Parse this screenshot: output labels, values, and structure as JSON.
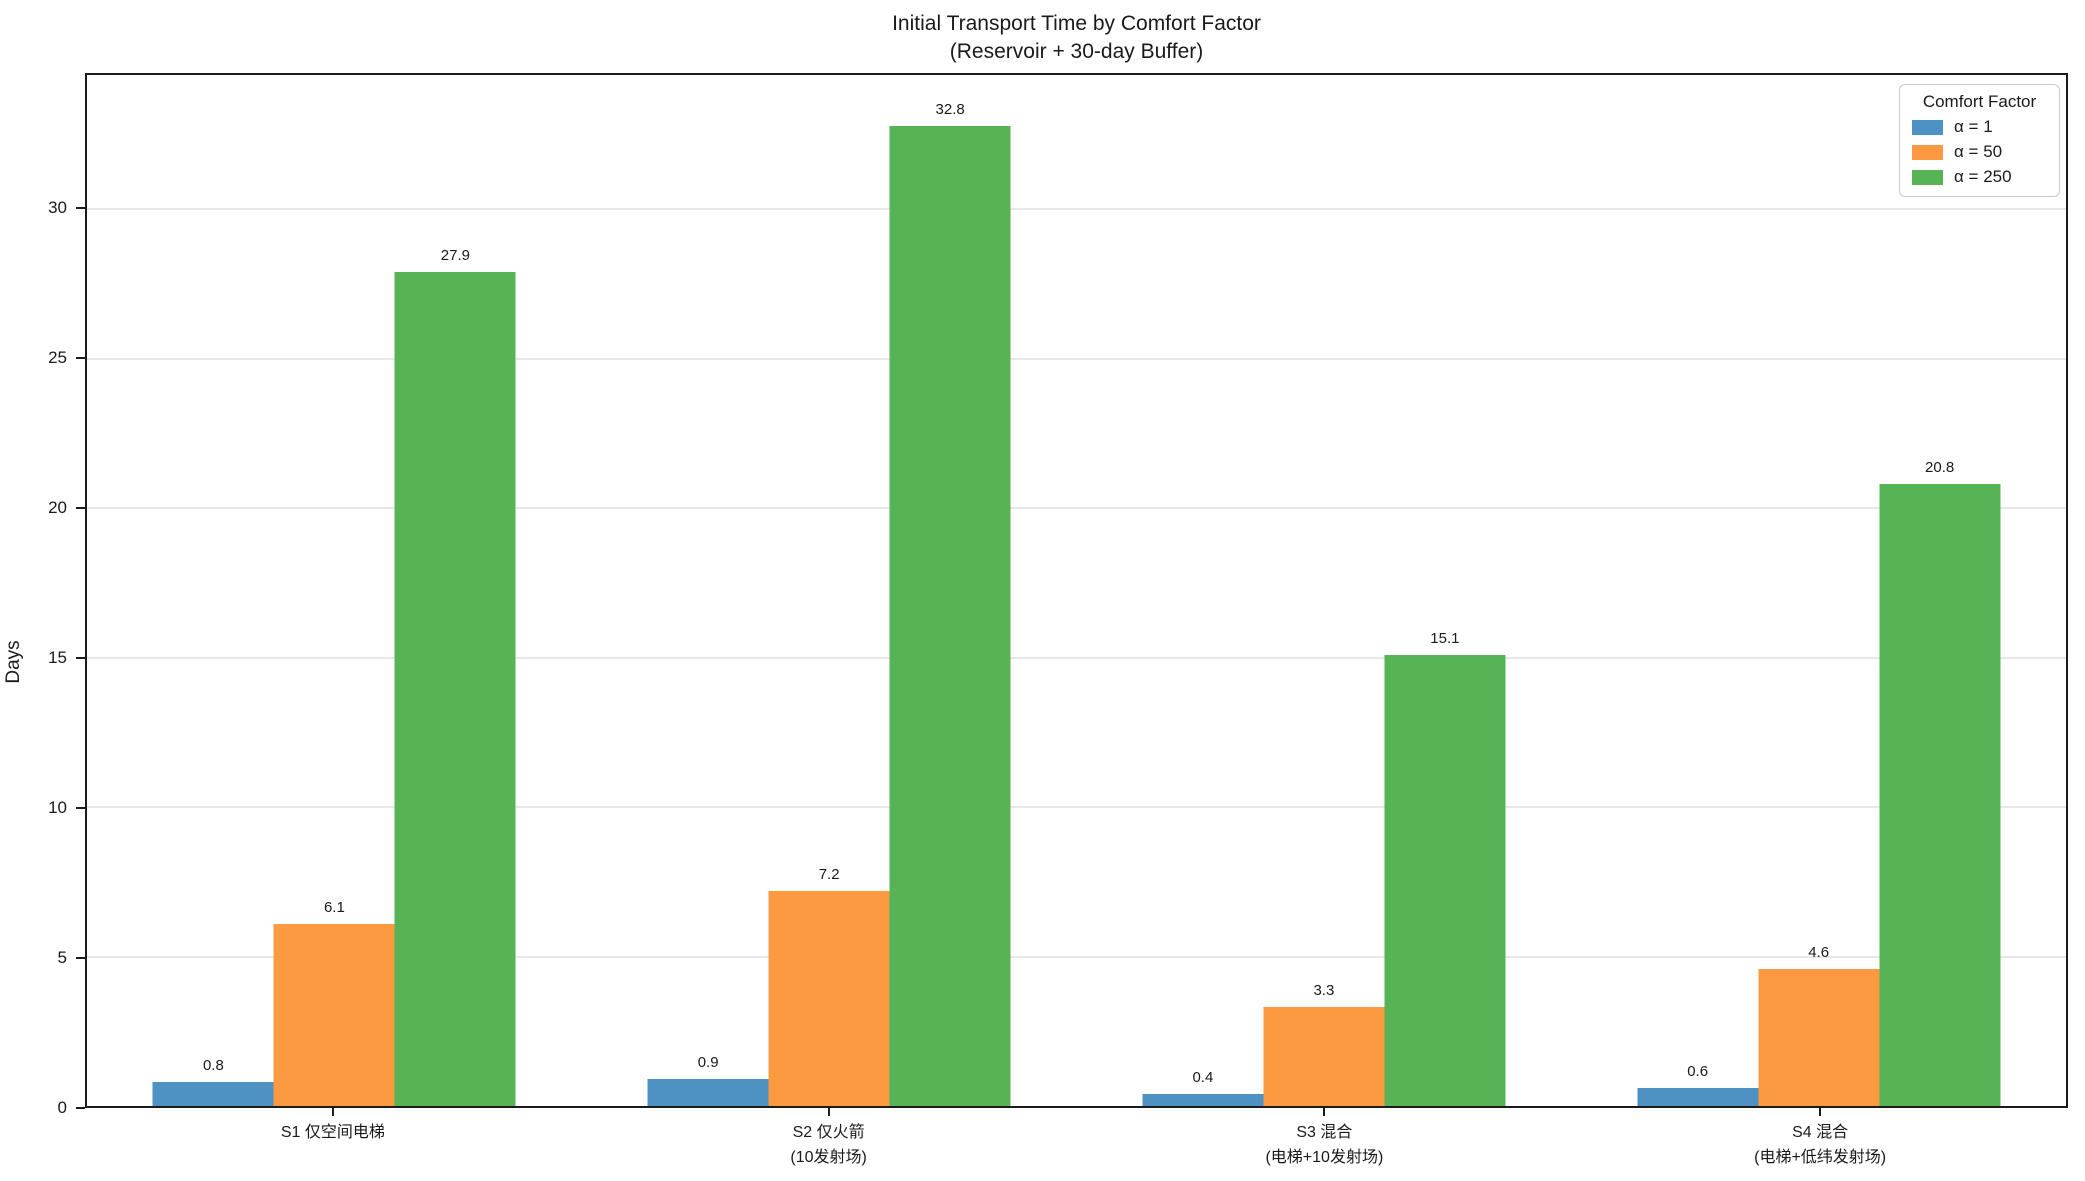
{
  "figure": {
    "title_line1": "Initial Transport Time by Comfort Factor",
    "title_line2": "(Reservoir + 30-day Buffer)"
  },
  "chart_data": {
    "type": "bar",
    "title": "Initial Transport Time by Comfort Factor\n(Reservoir + 30-day Buffer)",
    "xlabel": "",
    "ylabel": "Days",
    "ylim": [
      0,
      34.5
    ],
    "yticks": [
      0,
      5,
      10,
      15,
      20,
      25,
      30
    ],
    "grid": true,
    "bar_value_labels": true,
    "categories": [
      "S1 仅空间电梯",
      "S2 仅火箭\n(10发射场)",
      "S3 混合\n(电梯+10发射场)",
      "S4 混合\n(电梯+低纬发射场)"
    ],
    "series": [
      {
        "name": "α = 1",
        "color": "#4E92C3",
        "values": [
          0.8,
          0.9,
          0.4,
          0.6
        ]
      },
      {
        "name": "α = 50",
        "color": "#FB9A40",
        "values": [
          6.1,
          7.2,
          3.3,
          4.6
        ]
      },
      {
        "name": "α = 250",
        "color": "#56B356",
        "values": [
          27.9,
          32.8,
          15.1,
          20.8
        ]
      }
    ],
    "legend": {
      "title": "Comfort Factor",
      "position": "upper-right"
    }
  },
  "colors": {
    "background": "#ffffff",
    "spine": "#1b1b1b",
    "gridline": "#e7e7e7",
    "legend_border": "#cccccc",
    "text": "#1a1a1a"
  }
}
